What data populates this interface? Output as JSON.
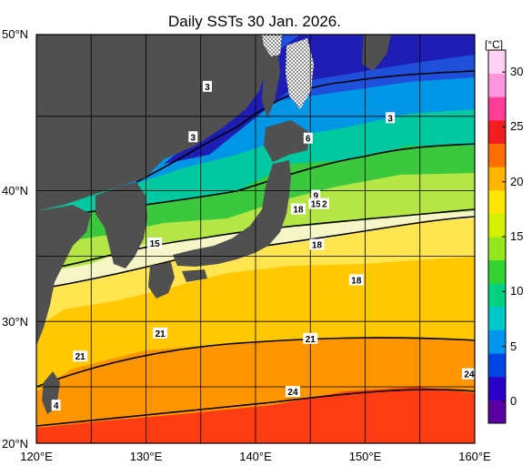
{
  "title": "Daily SSTs 30 Jan. 2026.",
  "axes": {
    "lat_labels": [
      "50°N",
      "40°N",
      "30°N",
      "20°N"
    ],
    "lat_values": [
      50,
      40,
      30,
      20
    ],
    "lon_labels": [
      "120°E",
      "130°E",
      "140°E",
      "150°E",
      "160°E"
    ],
    "lon_values": [
      120,
      130,
      140,
      150,
      160
    ],
    "lat_range": [
      20,
      50
    ],
    "lon_range": [
      120,
      160
    ]
  },
  "colorbar": {
    "unit": "[°C]",
    "tick_labels": [
      "30",
      "25",
      "20",
      "15",
      "10",
      "5",
      "0"
    ],
    "tick_values": [
      30,
      25,
      20,
      15,
      10,
      5,
      0
    ],
    "range": [
      -2,
      32
    ],
    "colors": [
      "#5a00a0",
      "#2a00c8",
      "#0046e6",
      "#0096f0",
      "#00c8c8",
      "#00d282",
      "#32d232",
      "#96e61e",
      "#d2f000",
      "#ffe600",
      "#ffb400",
      "#ff6e00",
      "#f01e1e",
      "#ff3c96",
      "#ff96dc",
      "#ffd2f5"
    ]
  },
  "contour_labels": [
    {
      "text": "3",
      "lon": 135.6,
      "lat": 46.2
    },
    {
      "text": "3",
      "lon": 134.3,
      "lat": 42.5
    },
    {
      "text": "3",
      "lon": 152.3,
      "lat": 43.9
    },
    {
      "text": "6",
      "lon": 144.8,
      "lat": 42.4
    },
    {
      "text": "9",
      "lon": 145.5,
      "lat": 38.2
    },
    {
      "text": "15",
      "lon": 145.5,
      "lat": 37.6
    },
    {
      "text": "2",
      "lon": 146.3,
      "lat": 37.6
    },
    {
      "text": "18",
      "lon": 143.9,
      "lat": 37.2
    },
    {
      "text": "15",
      "lon": 130.8,
      "lat": 34.7
    },
    {
      "text": "18",
      "lon": 145.6,
      "lat": 34.6
    },
    {
      "text": "18",
      "lon": 149.2,
      "lat": 32.0
    },
    {
      "text": "21",
      "lon": 131.3,
      "lat": 28.1
    },
    {
      "text": "21",
      "lon": 145.0,
      "lat": 27.7
    },
    {
      "text": "21",
      "lon": 124.0,
      "lat": 26.4
    },
    {
      "text": "24",
      "lon": 159.5,
      "lat": 25.1
    },
    {
      "text": "24",
      "lon": 143.4,
      "lat": 23.8
    },
    {
      "text": "4",
      "lon": 121.8,
      "lat": 22.8
    }
  ],
  "colors": {
    "land": "#505050",
    "grid": "#000000"
  }
}
